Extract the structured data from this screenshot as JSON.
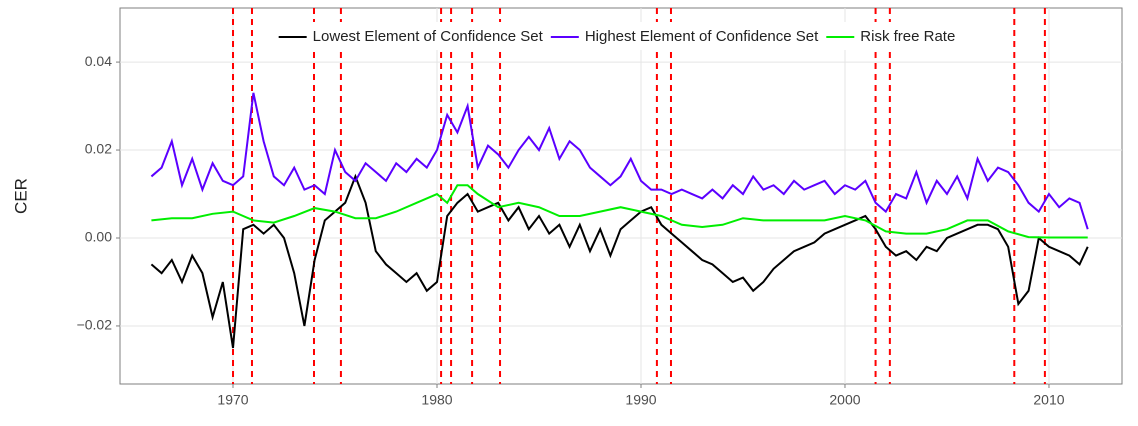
{
  "chart_data": {
    "type": "line",
    "y_label": "CER",
    "xlim": [
      1964.46,
      2013.58
    ],
    "ylim": [
      -0.0332,
      0.0523
    ],
    "xticks": [
      1970,
      1980,
      1990,
      2000,
      2010
    ],
    "yticks": [
      {
        "value": -0.02,
        "label": "−0.02"
      },
      {
        "value": 0,
        "label": "0.00"
      },
      0.02,
      0.04
    ],
    "grid": true,
    "legend": "top",
    "vlines": {
      "color": "#ff0000",
      "values": [
        1970.0,
        1970.93,
        1973.97,
        1975.29,
        1980.2,
        1980.69,
        1981.72,
        1983.09,
        1990.78,
        1991.47,
        2001.5,
        2002.2,
        2008.3,
        2009.8
      ]
    },
    "series": [
      {
        "name": "Lowest Element of Confidence Set",
        "color": "#000000",
        "x": [
          1966,
          1966.5,
          1967,
          1967.5,
          1968,
          1968.5,
          1969,
          1969.5,
          1970,
          1970.5,
          1971,
          1971.5,
          1972,
          1972.5,
          1973,
          1973.5,
          1974,
          1974.5,
          1975,
          1975.5,
          1976,
          1976.5,
          1977,
          1977.5,
          1978,
          1978.5,
          1979,
          1979.5,
          1980,
          1980.5,
          1981,
          1981.5,
          1982,
          1982.5,
          1983,
          1983.5,
          1984,
          1984.5,
          1985,
          1985.5,
          1986,
          1986.5,
          1987,
          1987.5,
          1988,
          1988.5,
          1989,
          1989.5,
          1990,
          1990.5,
          1991,
          1991.5,
          1992,
          1992.5,
          1993,
          1993.5,
          1994,
          1994.5,
          1995,
          1995.5,
          1996,
          1996.5,
          1997,
          1997.5,
          1998,
          1998.5,
          1999,
          1999.5,
          2000,
          2000.5,
          2001,
          2001.5,
          2002,
          2002.5,
          2003,
          2003.5,
          2004,
          2004.5,
          2005,
          2005.5,
          2006,
          2006.5,
          2007,
          2007.5,
          2008,
          2008.5,
          2009,
          2009.5,
          2010,
          2010.5,
          2011,
          2011.5,
          2011.9
        ],
        "values": [
          -0.006,
          -0.008,
          -0.005,
          -0.01,
          -0.004,
          -0.008,
          -0.018,
          -0.01,
          -0.025,
          0.002,
          0.003,
          0.001,
          0.003,
          0,
          -0.008,
          -0.02,
          -0.005,
          0.004,
          0.006,
          0.008,
          0.014,
          0.008,
          -0.003,
          -0.006,
          -0.008,
          -0.01,
          -0.008,
          -0.012,
          -0.01,
          0.005,
          0.008,
          0.01,
          0.006,
          0.007,
          0.008,
          0.004,
          0.007,
          0.002,
          0.005,
          0.001,
          0.003,
          -0.002,
          0.003,
          -0.003,
          0.002,
          -0.004,
          0.002,
          0.004,
          0.006,
          0.007,
          0.003,
          0.001,
          -0.001,
          -0.003,
          -0.005,
          -0.006,
          -0.008,
          -0.01,
          -0.009,
          -0.012,
          -0.01,
          -0.007,
          -0.005,
          -0.003,
          -0.002,
          -0.001,
          0.001,
          0.002,
          0.003,
          0.004,
          0.005,
          0.002,
          -0.002,
          -0.004,
          -0.003,
          -0.005,
          -0.002,
          -0.003,
          0,
          0.001,
          0.002,
          0.003,
          0.003,
          0.002,
          -0.002,
          -0.015,
          -0.012,
          0,
          -0.002,
          -0.003,
          -0.004,
          -0.006,
          -0.002
        ]
      },
      {
        "name": "Highest Element of Confidence Set",
        "color": "#5b00ff",
        "x": [
          1966,
          1966.5,
          1967,
          1967.5,
          1968,
          1968.5,
          1969,
          1969.5,
          1970,
          1970.5,
          1971,
          1971.5,
          1972,
          1972.5,
          1973,
          1973.5,
          1974,
          1974.5,
          1975,
          1975.5,
          1976,
          1976.5,
          1977,
          1977.5,
          1978,
          1978.5,
          1979,
          1979.5,
          1980,
          1980.5,
          1981,
          1981.5,
          1982,
          1982.5,
          1983,
          1983.5,
          1984,
          1984.5,
          1985,
          1985.5,
          1986,
          1986.5,
          1987,
          1987.5,
          1988,
          1988.5,
          1989,
          1989.5,
          1990,
          1990.5,
          1991,
          1991.5,
          1992,
          1992.5,
          1993,
          1993.5,
          1994,
          1994.5,
          1995,
          1995.5,
          1996,
          1996.5,
          1997,
          1997.5,
          1998,
          1998.5,
          1999,
          1999.5,
          2000,
          2000.5,
          2001,
          2001.5,
          2002,
          2002.5,
          2003,
          2003.5,
          2004,
          2004.5,
          2005,
          2005.5,
          2006,
          2006.5,
          2007,
          2007.5,
          2008,
          2008.5,
          2009,
          2009.5,
          2010,
          2010.5,
          2011,
          2011.5,
          2011.9
        ],
        "values": [
          0.014,
          0.016,
          0.022,
          0.012,
          0.018,
          0.011,
          0.017,
          0.013,
          0.012,
          0.014,
          0.033,
          0.022,
          0.014,
          0.012,
          0.016,
          0.011,
          0.012,
          0.01,
          0.02,
          0.015,
          0.013,
          0.017,
          0.015,
          0.013,
          0.017,
          0.015,
          0.018,
          0.016,
          0.02,
          0.028,
          0.024,
          0.03,
          0.016,
          0.021,
          0.019,
          0.016,
          0.02,
          0.023,
          0.02,
          0.025,
          0.018,
          0.022,
          0.02,
          0.016,
          0.014,
          0.012,
          0.014,
          0.018,
          0.013,
          0.011,
          0.011,
          0.01,
          0.011,
          0.01,
          0.009,
          0.011,
          0.009,
          0.012,
          0.01,
          0.014,
          0.011,
          0.012,
          0.01,
          0.013,
          0.011,
          0.012,
          0.013,
          0.01,
          0.012,
          0.011,
          0.013,
          0.008,
          0.006,
          0.01,
          0.009,
          0.015,
          0.008,
          0.013,
          0.01,
          0.014,
          0.009,
          0.018,
          0.013,
          0.016,
          0.015,
          0.012,
          0.008,
          0.006,
          0.01,
          0.007,
          0.009,
          0.008,
          0.002
        ]
      },
      {
        "name": "Risk free Rate",
        "color": "#00ee00",
        "x": [
          1966,
          1967,
          1968,
          1969,
          1970,
          1971,
          1972,
          1973,
          1974,
          1975,
          1976,
          1977,
          1978,
          1979,
          1980,
          1980.5,
          1981,
          1981.5,
          1982,
          1983,
          1984,
          1985,
          1986,
          1987,
          1988,
          1989,
          1990,
          1991,
          1992,
          1993,
          1994,
          1995,
          1996,
          1997,
          1998,
          1999,
          2000,
          2001,
          2002,
          2003,
          2004,
          2005,
          2006,
          2007,
          2008,
          2009,
          2010,
          2011,
          2011.9
        ],
        "values": [
          0.004,
          0.0045,
          0.0045,
          0.0055,
          0.006,
          0.004,
          0.0035,
          0.005,
          0.0068,
          0.006,
          0.0045,
          0.0045,
          0.006,
          0.008,
          0.01,
          0.008,
          0.012,
          0.012,
          0.01,
          0.007,
          0.008,
          0.007,
          0.005,
          0.005,
          0.006,
          0.007,
          0.006,
          0.005,
          0.003,
          0.0025,
          0.003,
          0.0045,
          0.004,
          0.004,
          0.004,
          0.004,
          0.005,
          0.004,
          0.0015,
          0.001,
          0.001,
          0.002,
          0.004,
          0.004,
          0.0015,
          0.0002,
          0.0001,
          0.0001,
          0.0001
        ]
      }
    ]
  }
}
